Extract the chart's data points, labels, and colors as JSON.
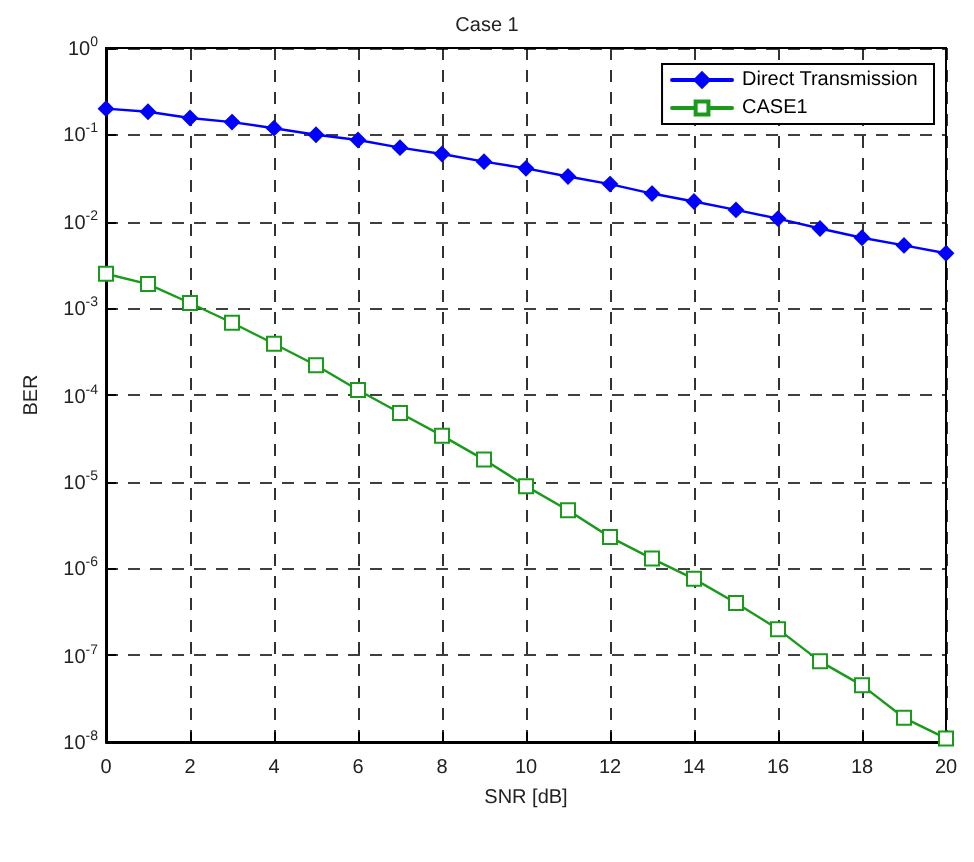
{
  "chart_data": {
    "type": "line",
    "title": "Case 1",
    "xlabel": "SNR [dB]",
    "ylabel": "BER",
    "x": [
      0,
      1,
      2,
      3,
      4,
      5,
      6,
      7,
      8,
      9,
      10,
      11,
      12,
      13,
      14,
      15,
      16,
      17,
      18,
      19,
      20
    ],
    "series": [
      {
        "name": "Direct Transmission",
        "color": "#0000ff",
        "marker": "diamond",
        "values": [
          0.2,
          0.184,
          0.156,
          0.14,
          0.119,
          0.1,
          0.087,
          0.071,
          0.06,
          0.049,
          0.041,
          0.033,
          0.027,
          0.021,
          0.017,
          0.0136,
          0.0108,
          0.0083,
          0.0065,
          0.0053,
          0.0043
        ]
      },
      {
        "name": "CASE1",
        "color": "#1a9a1a",
        "marker": "square",
        "values": [
          0.0025,
          0.0019,
          0.00115,
          0.00068,
          0.00039,
          0.00022,
          0.000114,
          6.2e-05,
          3.4e-05,
          1.8e-05,
          8.9e-06,
          4.7e-06,
          2.3e-06,
          1.3e-06,
          7.6e-07,
          4e-07,
          2e-07,
          8.5e-08,
          4.5e-08,
          1.9e-08,
          1.1e-08
        ]
      }
    ],
    "xlim": [
      0,
      20
    ],
    "xticks": [
      0,
      2,
      4,
      6,
      8,
      10,
      12,
      14,
      16,
      18,
      20
    ],
    "ylim": [
      1e-08,
      1
    ],
    "log": "y",
    "yticks": [
      {
        "value": 1e-08,
        "label": "10$^{-8}$"
      },
      {
        "value": 1e-07,
        "label": "10$^{-7}$"
      },
      {
        "value": 1e-06,
        "label": "10$^{-6}$"
      },
      {
        "value": 1e-05,
        "label": "10$^{-5}$"
      },
      {
        "value": 0.0001,
        "label": "10$^{-4}$"
      },
      {
        "value": 0.001,
        "label": "10$^{-3}$"
      },
      {
        "value": 0.01,
        "label": "10$^{-2}$"
      },
      {
        "value": 0.1,
        "label": "10$^{-1}$"
      },
      {
        "value": 1,
        "label": "10$^{0}$"
      }
    ],
    "grid": true,
    "legend": "top right",
    "line_style": "solid"
  }
}
